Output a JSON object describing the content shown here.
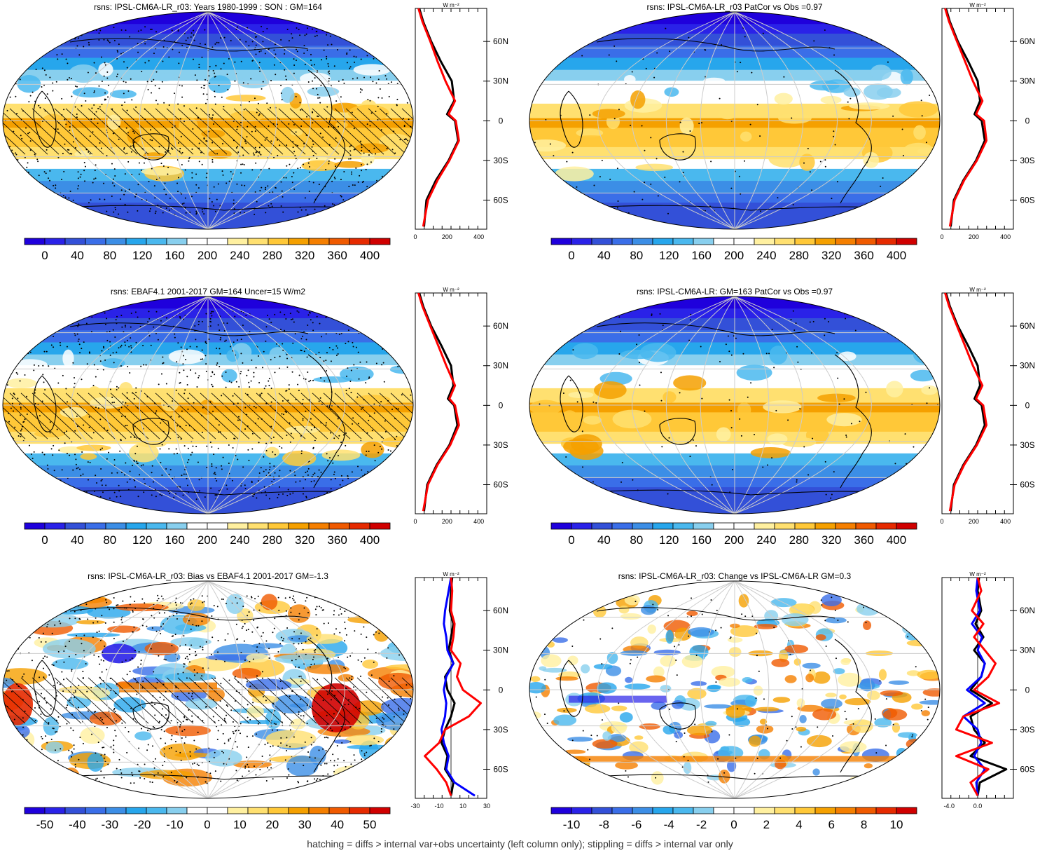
{
  "palettes": {
    "abs": [
      "#1f00dc",
      "#2a22e8",
      "#3350d8",
      "#3a6ee8",
      "#3c8ee6",
      "#27a6ec",
      "#4ab8ee",
      "#88cfee",
      "#ffffff",
      "#ffffff",
      "#fff0a0",
      "#ffe070",
      "#ffc838",
      "#f5a000",
      "#f57f00",
      "#f05a00",
      "#e62a00",
      "#d00000"
    ],
    "diff": [
      "#1f00dc",
      "#2a22e8",
      "#3350d8",
      "#3a6ee8",
      "#3c8ee6",
      "#27a6ec",
      "#4ab8ee",
      "#88cfee",
      "#ffffff",
      "#ffffff",
      "#fff0a0",
      "#ffe070",
      "#ffc838",
      "#f5a000",
      "#f57f00",
      "#f05a00",
      "#e62a00",
      "#d00000"
    ]
  },
  "line_colors": {
    "model": "#0000ff",
    "obs": "#ff0000",
    "mean": "#000000"
  },
  "lat_labels": [
    "60N",
    "30N",
    "0",
    "30S",
    "60S"
  ],
  "profile_unit": "W m⁻²",
  "panels": [
    {
      "title": "rsns: IPSL-CM6A-LR_r03: Years 1980-1999 : SON : GM=164",
      "kind": "abs",
      "hatch": true,
      "stipple": "dense",
      "colorbar_labels": [
        "0",
        "40",
        "80",
        "120",
        "160",
        "200",
        "240",
        "280",
        "320",
        "360",
        "400"
      ],
      "profile_xlabels": [
        "0",
        "200",
        "400"
      ],
      "chart_data": {
        "type": "line",
        "ylabel": "latitude",
        "xlabel": "W m-2",
        "xlim": [
          0,
          450
        ],
        "series": [
          {
            "color": "black",
            "lat": [
              -80,
              -60,
              -45,
              -30,
              -15,
              0,
              5,
              15,
              30,
              45,
              60,
              75,
              85
            ],
            "values": [
              55,
              70,
              130,
              210,
              270,
              250,
              200,
              245,
              230,
              160,
              100,
              50,
              25
            ]
          },
          {
            "color": "red",
            "lat": [
              -80,
              -60,
              -45,
              -30,
              -15,
              0,
              5,
              15,
              30,
              45,
              60,
              75,
              85
            ],
            "values": [
              50,
              80,
              140,
              215,
              275,
              255,
              210,
              250,
              190,
              140,
              95,
              45,
              20
            ]
          }
        ]
      }
    },
    {
      "title": "rsns: IPSL-CM6A-LR_r03 PatCor vs Obs =0.97",
      "kind": "abs",
      "hatch": false,
      "stipple": "sparse",
      "colorbar_labels": [
        "0",
        "40",
        "80",
        "120",
        "160",
        "200",
        "240",
        "280",
        "320",
        "360",
        "400"
      ],
      "profile_xlabels": [
        "0",
        "200",
        "400"
      ],
      "chart_data": {
        "type": "line",
        "ylabel": "latitude",
        "xlabel": "W m-2",
        "xlim": [
          0,
          450
        ],
        "series": [
          {
            "color": "black",
            "lat": [
              -80,
              -60,
              -45,
              -30,
              -15,
              0,
              5,
              15,
              30,
              45,
              60,
              75,
              85
            ],
            "values": [
              55,
              75,
              135,
              215,
              270,
              250,
              205,
              240,
              225,
              165,
              100,
              50,
              25
            ]
          },
          {
            "color": "red",
            "lat": [
              -80,
              -60,
              -45,
              -30,
              -15,
              0,
              5,
              15,
              30,
              45,
              60,
              75,
              85
            ],
            "values": [
              50,
              80,
              140,
              220,
              280,
              265,
              215,
              255,
              195,
              145,
              95,
              45,
              20
            ]
          }
        ]
      }
    },
    {
      "title": "rsns: EBAF4.1 2001-2017 GM=164 Uncer=15 W/m2",
      "kind": "abs",
      "hatch": true,
      "stipple": "dense",
      "colorbar_labels": [
        "0",
        "40",
        "80",
        "120",
        "160",
        "200",
        "240",
        "280",
        "320",
        "360",
        "400"
      ],
      "profile_xlabels": [
        "0",
        "200",
        "400"
      ],
      "chart_data": {
        "type": "line",
        "ylabel": "latitude",
        "xlabel": "W m-2",
        "xlim": [
          0,
          450
        ],
        "series": [
          {
            "color": "black",
            "lat": [
              -80,
              -60,
              -45,
              -30,
              -15,
              0,
              5,
              15,
              30,
              45,
              60,
              75,
              85
            ],
            "values": [
              55,
              75,
              135,
              215,
              265,
              245,
              205,
              240,
              225,
              165,
              100,
              50,
              25
            ]
          },
          {
            "color": "red",
            "lat": [
              -80,
              -60,
              -45,
              -30,
              -15,
              0,
              5,
              15,
              30,
              45,
              60,
              75,
              85
            ],
            "values": [
              50,
              80,
              140,
              220,
              275,
              250,
              215,
              250,
              195,
              145,
              95,
              45,
              20
            ]
          }
        ]
      }
    },
    {
      "title": "rsns: IPSL-CM6A-LR: GM=163 PatCor vs Obs =0.97",
      "kind": "abs",
      "hatch": false,
      "stipple": "sparse",
      "colorbar_labels": [
        "0",
        "40",
        "80",
        "120",
        "160",
        "200",
        "240",
        "280",
        "320",
        "360",
        "400"
      ],
      "profile_xlabels": [
        "0",
        "200",
        "400"
      ],
      "chart_data": {
        "type": "line",
        "ylabel": "latitude",
        "xlabel": "W m-2",
        "xlim": [
          0,
          450
        ],
        "series": [
          {
            "color": "black",
            "lat": [
              -80,
              -60,
              -45,
              -30,
              -15,
              0,
              5,
              15,
              30,
              45,
              60,
              75,
              85
            ],
            "values": [
              55,
              75,
              135,
              215,
              270,
              250,
              205,
              240,
              225,
              165,
              100,
              50,
              25
            ]
          },
          {
            "color": "red",
            "lat": [
              -80,
              -60,
              -45,
              -30,
              -15,
              0,
              5,
              15,
              30,
              45,
              60,
              75,
              85
            ],
            "values": [
              50,
              80,
              140,
              220,
              280,
              260,
              215,
              255,
              195,
              145,
              95,
              45,
              20
            ]
          }
        ]
      }
    },
    {
      "title": "rsns: IPSL-CM6A-LR_r03: Bias vs EBAF4.1 2001-2017  GM=-1.3",
      "kind": "diff",
      "hatch": true,
      "stipple": "dense",
      "colorbar_labels": [
        "-50",
        "-40",
        "-30",
        "-20",
        "-10",
        "0",
        "10",
        "20",
        "30",
        "40",
        "50"
      ],
      "profile_xlabels": [
        "-30",
        "-10",
        "10",
        "30"
      ],
      "chart_data": {
        "type": "line",
        "ylabel": "latitude",
        "xlabel": "W m-2",
        "xlim": [
          -30,
          30
        ],
        "series": [
          {
            "color": "black",
            "lat": [
              -80,
              -70,
              -60,
              -50,
              -40,
              -30,
              -20,
              -10,
              0,
              10,
              20,
              30,
              40,
              50,
              60,
              75,
              85
            ],
            "values": [
              0,
              2,
              -5,
              -3,
              -8,
              -5,
              0,
              3,
              -3,
              -5,
              2,
              -2,
              0,
              2,
              -1,
              0,
              1
            ]
          },
          {
            "color": "blue",
            "lat": [
              -80,
              -70,
              -60,
              -50,
              -40,
              -30,
              -20,
              -10,
              0,
              10,
              20,
              30,
              40,
              50,
              60,
              75,
              85
            ],
            "values": [
              20,
              3,
              -4,
              -2,
              -6,
              -8,
              -5,
              -4,
              -6,
              -4,
              2,
              -3,
              -4,
              -6,
              -5,
              -2,
              0
            ]
          },
          {
            "color": "red",
            "lat": [
              -80,
              -70,
              -60,
              -50,
              -40,
              -30,
              -20,
              -10,
              0,
              10,
              20,
              30,
              40,
              50,
              60,
              75,
              85
            ],
            "values": [
              0,
              -4,
              -12,
              -22,
              -10,
              -5,
              15,
              25,
              10,
              5,
              8,
              0,
              2,
              3,
              0,
              1,
              0
            ]
          }
        ]
      }
    },
    {
      "title": "rsns: IPSL-CM6A-LR_r03: Change vs IPSL-CM6A-LR GM=0.3",
      "kind": "diff",
      "hatch": false,
      "stipple": "sparse",
      "colorbar_labels": [
        "-10",
        "-8",
        "-6",
        "-4",
        "-2",
        "0",
        "2",
        "4",
        "6",
        "8",
        "10"
      ],
      "profile_xlabels": [
        "-4.0",
        "0.0"
      ],
      "chart_data": {
        "type": "line",
        "ylabel": "latitude",
        "xlabel": "W m-2",
        "xlim": [
          -5,
          5
        ],
        "series": [
          {
            "color": "black",
            "lat": [
              -80,
              -70,
              -60,
              -50,
              -40,
              -30,
              -20,
              -10,
              0,
              10,
              20,
              30,
              40,
              50,
              60,
              75,
              85
            ],
            "values": [
              0,
              0.3,
              4,
              -1,
              1,
              -0.5,
              -1,
              2,
              -1,
              0.5,
              1,
              -0.5,
              0.8,
              -0.3,
              0.5,
              0,
              0.2
            ]
          },
          {
            "color": "blue",
            "lat": [
              -80,
              -70,
              -60,
              -50,
              -40,
              -30,
              -20,
              -10,
              0,
              10,
              20,
              30,
              40,
              50,
              60,
              75,
              85
            ],
            "values": [
              0,
              -0.2,
              1,
              -0.5,
              0.5,
              0,
              -2,
              1,
              -1.5,
              0.5,
              1,
              0,
              0.6,
              -0.8,
              0.3,
              -0.2,
              0
            ]
          },
          {
            "color": "red",
            "lat": [
              -80,
              -70,
              -60,
              -50,
              -40,
              -30,
              -20,
              -10,
              0,
              10,
              20,
              30,
              40,
              50,
              60,
              75,
              85
            ],
            "values": [
              0,
              -1,
              1.5,
              -3,
              2,
              -3,
              -2,
              3,
              -0.5,
              1.5,
              2.5,
              1,
              -0.5,
              0.8,
              -0.8,
              0.5,
              0
            ]
          }
        ]
      }
    }
  ],
  "footer": "hatching = diffs > internal var+obs uncertainty (left column only); stippling = diffs > internal var only"
}
